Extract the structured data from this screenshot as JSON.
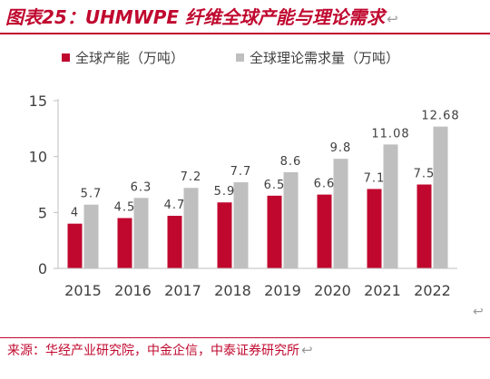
{
  "figure": {
    "title": "图表25：UHMWPE 纤维全球产能与理论需求",
    "source": "来源：华经产业研究院，中金企信，中泰证券研究所",
    "paragraph_mark": "↩"
  },
  "colors": {
    "accent": "#c0082f",
    "capacity_bar": "#c0082f",
    "demand_bar": "#bfbfbf",
    "axis": "#bfbfbf",
    "text": "#404040"
  },
  "chart_data": {
    "type": "bar",
    "title": "",
    "xlabel": "",
    "ylabel": "",
    "categories": [
      "2015",
      "2016",
      "2017",
      "2018",
      "2019",
      "2020",
      "2021",
      "2022"
    ],
    "series": [
      {
        "name": "全球产能（万吨）",
        "values": [
          4,
          4.5,
          4.7,
          5.9,
          6.5,
          6.6,
          7.1,
          7.5
        ],
        "labels": [
          "4",
          "4.5",
          "4.7",
          "5.9",
          "6.5",
          "6.6",
          "7.1",
          "7.5"
        ]
      },
      {
        "name": "全球理论需求量（万吨）",
        "values": [
          5.7,
          6.3,
          7.2,
          7.7,
          8.6,
          9.8,
          11.08,
          12.68
        ],
        "labels": [
          "5.7",
          "6.3",
          "7.2",
          "7.7",
          "8.6",
          "9.8",
          "11.08",
          "12.68"
        ]
      }
    ],
    "ylim": [
      0,
      15
    ],
    "yticks": [
      "0",
      "5",
      "10",
      "15"
    ],
    "grid": false,
    "legend_position": "top"
  }
}
